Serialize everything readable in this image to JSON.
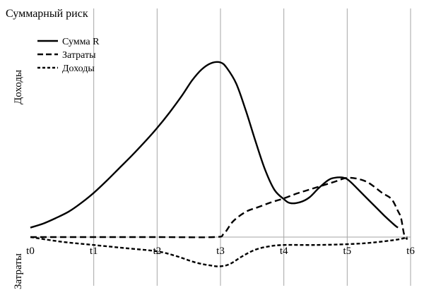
{
  "chart_data": {
    "type": "line",
    "title": "Суммарный риск",
    "ylabel_top": "Доходы",
    "ylabel_bottom": "Затраты",
    "x_ticks": [
      "t0",
      "t1",
      "t2",
      "t3",
      "t4",
      "t5",
      "t6"
    ],
    "xlim": [
      0,
      6
    ],
    "ylim": [
      -50,
      275
    ],
    "grid": "vertical",
    "legend": "top-left",
    "series": [
      {
        "name": "Сумма R",
        "style": "solid",
        "color": "#000000",
        "points": [
          [
            0,
            12
          ],
          [
            0.2,
            17
          ],
          [
            0.4,
            24
          ],
          [
            0.6,
            32
          ],
          [
            0.8,
            43
          ],
          [
            1.0,
            56
          ],
          [
            1.2,
            71
          ],
          [
            1.4,
            87
          ],
          [
            1.6,
            103
          ],
          [
            1.8,
            120
          ],
          [
            2.0,
            138
          ],
          [
            2.2,
            158
          ],
          [
            2.4,
            180
          ],
          [
            2.55,
            198
          ],
          [
            2.7,
            212
          ],
          [
            2.85,
            220
          ],
          [
            3.0,
            221
          ],
          [
            3.1,
            214
          ],
          [
            3.25,
            194
          ],
          [
            3.4,
            160
          ],
          [
            3.55,
            122
          ],
          [
            3.7,
            86
          ],
          [
            3.85,
            60
          ],
          [
            4.0,
            48
          ],
          [
            4.1,
            43
          ],
          [
            4.25,
            44
          ],
          [
            4.4,
            50
          ],
          [
            4.55,
            62
          ],
          [
            4.7,
            72
          ],
          [
            4.8,
            75
          ],
          [
            4.95,
            75
          ],
          [
            5.05,
            70
          ],
          [
            5.2,
            58
          ],
          [
            5.4,
            42
          ],
          [
            5.6,
            26
          ],
          [
            5.75,
            15
          ],
          [
            5.8,
            12
          ]
        ]
      },
      {
        "name": "Затраты",
        "style": "dashed",
        "color": "#000000",
        "points": [
          [
            0,
            0
          ],
          [
            1,
            0
          ],
          [
            2,
            0
          ],
          [
            2.9,
            0
          ],
          [
            3.05,
            4
          ],
          [
            3.2,
            20
          ],
          [
            3.4,
            32
          ],
          [
            3.6,
            38
          ],
          [
            3.8,
            44
          ],
          [
            4.0,
            49
          ],
          [
            4.2,
            55
          ],
          [
            4.4,
            60
          ],
          [
            4.6,
            65
          ],
          [
            4.8,
            70
          ],
          [
            5.0,
            75
          ],
          [
            5.2,
            73
          ],
          [
            5.35,
            68
          ],
          [
            5.55,
            56
          ],
          [
            5.7,
            48
          ],
          [
            5.8,
            33
          ],
          [
            5.85,
            24
          ],
          [
            5.9,
            3
          ],
          [
            5.95,
            -3
          ]
        ]
      },
      {
        "name": "Доходы",
        "style": "dotted-dash",
        "color": "#000000",
        "points": [
          [
            0,
            0
          ],
          [
            0.5,
            -6
          ],
          [
            1.0,
            -10
          ],
          [
            1.5,
            -14
          ],
          [
            2.0,
            -18
          ],
          [
            2.3,
            -24
          ],
          [
            2.6,
            -32
          ],
          [
            2.85,
            -36
          ],
          [
            3.0,
            -37
          ],
          [
            3.15,
            -34
          ],
          [
            3.35,
            -24
          ],
          [
            3.55,
            -16
          ],
          [
            3.75,
            -12
          ],
          [
            4.0,
            -10
          ],
          [
            4.5,
            -10
          ],
          [
            5.0,
            -9
          ],
          [
            5.4,
            -7
          ],
          [
            5.8,
            -3
          ],
          [
            5.95,
            0
          ]
        ]
      }
    ]
  }
}
